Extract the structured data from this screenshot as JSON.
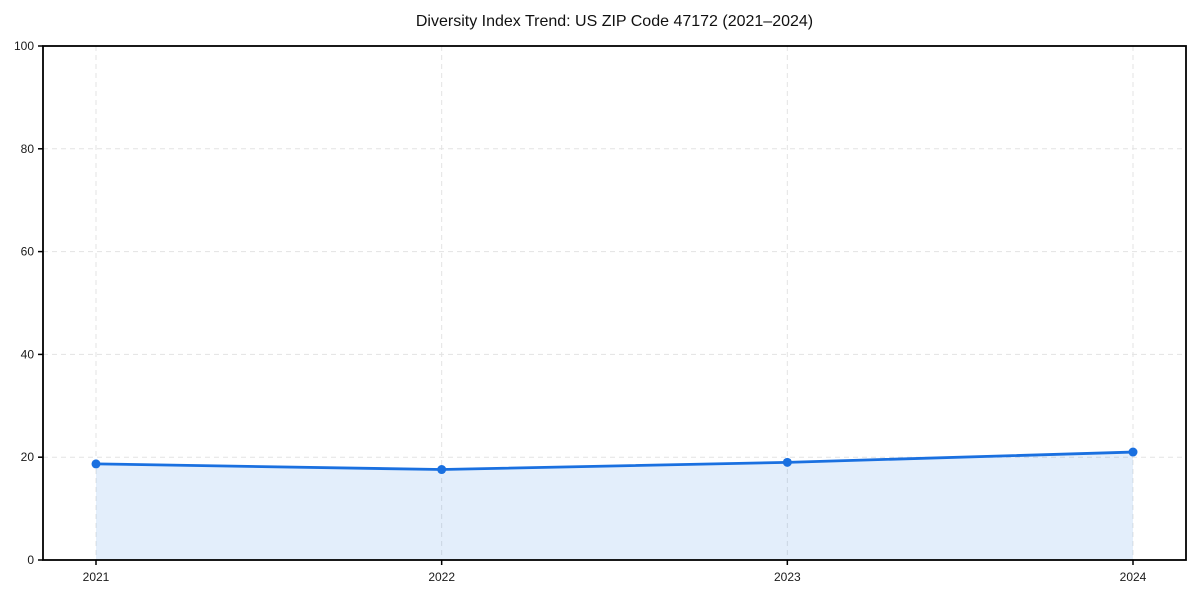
{
  "chart_data": {
    "type": "area",
    "title": "Diversity Index Trend: US ZIP Code 47172 (2021–2024)",
    "categories": [
      "2021",
      "2022",
      "2023",
      "2024"
    ],
    "series": [
      {
        "name": "Diversity Index",
        "values": [
          18.7,
          17.6,
          19.0,
          21.0
        ]
      }
    ],
    "xlabel": "",
    "ylabel": "",
    "ylim": [
      0,
      100
    ],
    "yticks": [
      0,
      20,
      40,
      60,
      80,
      100
    ],
    "grid": "dashed, both axes",
    "legend": false,
    "colors": {
      "line": "#1a70e0",
      "marker": "#1a70e0",
      "fill": "rgba(26,112,224,0.12)",
      "grid": "#e3e3e3",
      "axis": "#000000",
      "tick_label": "#1a1a1a"
    }
  }
}
